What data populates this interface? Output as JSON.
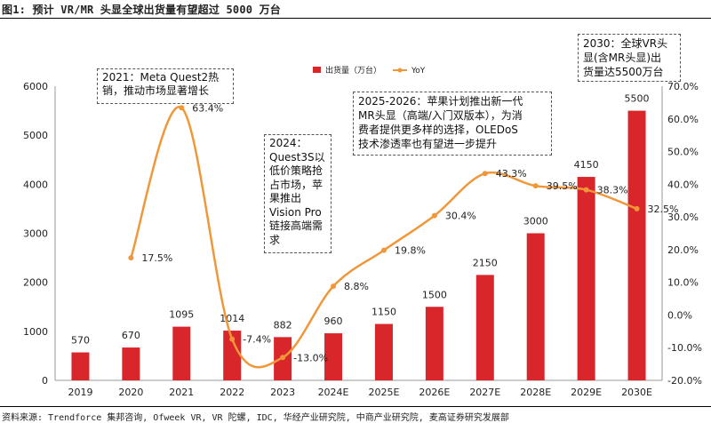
{
  "title": "图1: 预计 VR/MR 头显全球出货量有望超过 5000 万台",
  "source": "资料来源: Trendforce 集邦咨询, Ofweek VR, VR 陀螺, IDC, 华经产业研究院, 中商产业研究院, 麦高证券研究发展部",
  "chart_data": {
    "type": "bar",
    "categories": [
      "2019",
      "2020",
      "2021",
      "2022",
      "2023",
      "2024E",
      "2025E",
      "2026E",
      "2027E",
      "2028E",
      "2029E",
      "2030E"
    ],
    "series": [
      {
        "name": "出货量（万台）",
        "type": "bar",
        "axis": "left",
        "values": [
          570,
          670,
          1095,
          1014,
          882,
          960,
          1150,
          1500,
          2150,
          3000,
          4150,
          5500
        ],
        "labels": [
          "570",
          "670",
          "1095",
          "1014",
          "882",
          "960",
          "1150",
          "1500",
          "2150",
          "3000",
          "4150",
          "5500"
        ],
        "color": "#d9262b"
      },
      {
        "name": "YoY",
        "type": "line",
        "axis": "right",
        "values": [
          null,
          17.5,
          63.4,
          -7.4,
          -13.0,
          8.8,
          19.8,
          30.4,
          43.3,
          39.5,
          38.3,
          32.5
        ],
        "labels": [
          "",
          "17.5%",
          "63.4%",
          "-7.4%",
          "-13.0%",
          "8.8%",
          "19.8%",
          "30.4%",
          "43.3%",
          "39.5%",
          "38.3%",
          "32.5%"
        ],
        "color": "#f0973a"
      }
    ],
    "y_left": {
      "min": 0,
      "max": 6000,
      "step": 1000,
      "ticks": [
        "0",
        "1000",
        "2000",
        "3000",
        "4000",
        "5000",
        "6000"
      ]
    },
    "y_right": {
      "min": -20,
      "max": 70,
      "step": 10,
      "ticks": [
        "-20.0%",
        "-10.0%",
        "0.0%",
        "10.0%",
        "20.0%",
        "30.0%",
        "40.0%",
        "50.0%",
        "60.0%",
        "70.0%"
      ]
    },
    "legend": {
      "bar_label": "出货量（万台）",
      "line_label": "YoY",
      "position": "top-right"
    },
    "annotations": [
      {
        "id": "a2021",
        "lines": [
          "2021：Meta Quest2热",
          "销，推动市场显著增长"
        ]
      },
      {
        "id": "a2024",
        "lines": [
          "2024：",
          "Quest3S以",
          "低价策略抢",
          "占市场，苹",
          "果推出",
          "Vision Pro",
          "链接高端需",
          "求"
        ]
      },
      {
        "id": "a2025",
        "lines": [
          "2025-2026：苹果计划推出新一代",
          "MR头显（高端/入门双版本），为消",
          "费者提供更多样的选择，OLEDoS",
          "技术渗透率也有望进一步提升"
        ]
      },
      {
        "id": "a2030",
        "lines": [
          "2030：全球VR头",
          "显(含MR头显)出",
          "货量达5500万台"
        ]
      }
    ]
  }
}
